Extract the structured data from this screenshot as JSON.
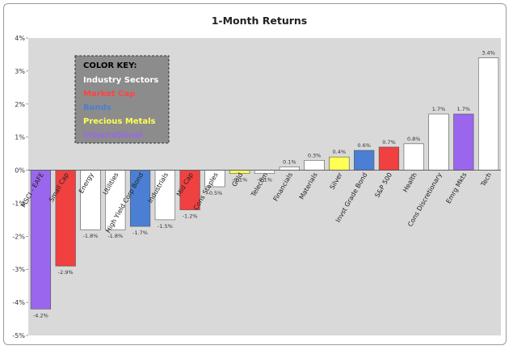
{
  "chart_data": {
    "type": "bar",
    "title": "1-Month Returns",
    "xlabel": "",
    "ylabel": "",
    "ylim": [
      -5,
      4
    ],
    "y_ticks": [
      "-5%",
      "-4%",
      "-3%",
      "-2%",
      "-1%",
      "0%",
      "1%",
      "2%",
      "3%",
      "4%"
    ],
    "y_tick_values": [
      -5,
      -4,
      -3,
      -2,
      -1,
      0,
      1,
      2,
      3,
      4
    ],
    "grid": false,
    "categories": [
      "MSCI - EAFE",
      "Small Cap",
      "Energy",
      "Utilities",
      "High Yield Corp Bond",
      "Industrials",
      "Mid Cap",
      "Cons Staples",
      "Gold",
      "Telecom",
      "Financials",
      "Materials",
      "Silver",
      "Invst Grade Bond",
      "S&P 500",
      "Health",
      "Cons Discretionary",
      "Emrg Mkts",
      "Tech"
    ],
    "values": [
      -4.2,
      -2.9,
      -1.8,
      -1.8,
      -1.7,
      -1.5,
      -1.2,
      -0.5,
      -0.1,
      -0.1,
      0.1,
      0.3,
      0.4,
      0.6,
      0.7,
      0.8,
      1.7,
      1.7,
      3.4
    ],
    "data_labels": [
      "-4.2%",
      "-2.9%",
      "-1.8%",
      "-1.8%",
      "-1.7%",
      "-1.5%",
      "-1.2%",
      "-0.5%",
      "-0.1%",
      "-0.1%",
      "0.1%",
      "0.3%",
      "0.4%",
      "0.6%",
      "0.7%",
      "0.8%",
      "1.7%",
      "1.7%",
      "3.4%"
    ],
    "groups": [
      "International",
      "Market Cap",
      "Industry Sectors",
      "Industry Sectors",
      "Bonds",
      "Industry Sectors",
      "Market Cap",
      "Industry Sectors",
      "Precious Metals",
      "Industry Sectors",
      "Industry Sectors",
      "Industry Sectors",
      "Precious Metals",
      "Bonds",
      "Market Cap",
      "Industry Sectors",
      "Industry Sectors",
      "International",
      "Industry Sectors"
    ],
    "legend": {
      "title": "COLOR KEY:",
      "placement": "top-left",
      "entries": [
        {
          "label": "Industry Sectors",
          "color": "#ffffff"
        },
        {
          "label": "Market Cap",
          "color": "#ff4444"
        },
        {
          "label": "Bonds",
          "color": "#4a7fd4"
        },
        {
          "label": "Precious Metals",
          "color": "#ffff55"
        },
        {
          "label": "International",
          "color": "#9b66ee"
        }
      ]
    },
    "colors": {
      "Industry Sectors": "#ffffff",
      "Market Cap": "#f04040",
      "Bonds": "#4a7fd4",
      "Precious Metals": "#ffff55",
      "International": "#9b66ee",
      "plot_background": "#d9d9d9"
    }
  }
}
